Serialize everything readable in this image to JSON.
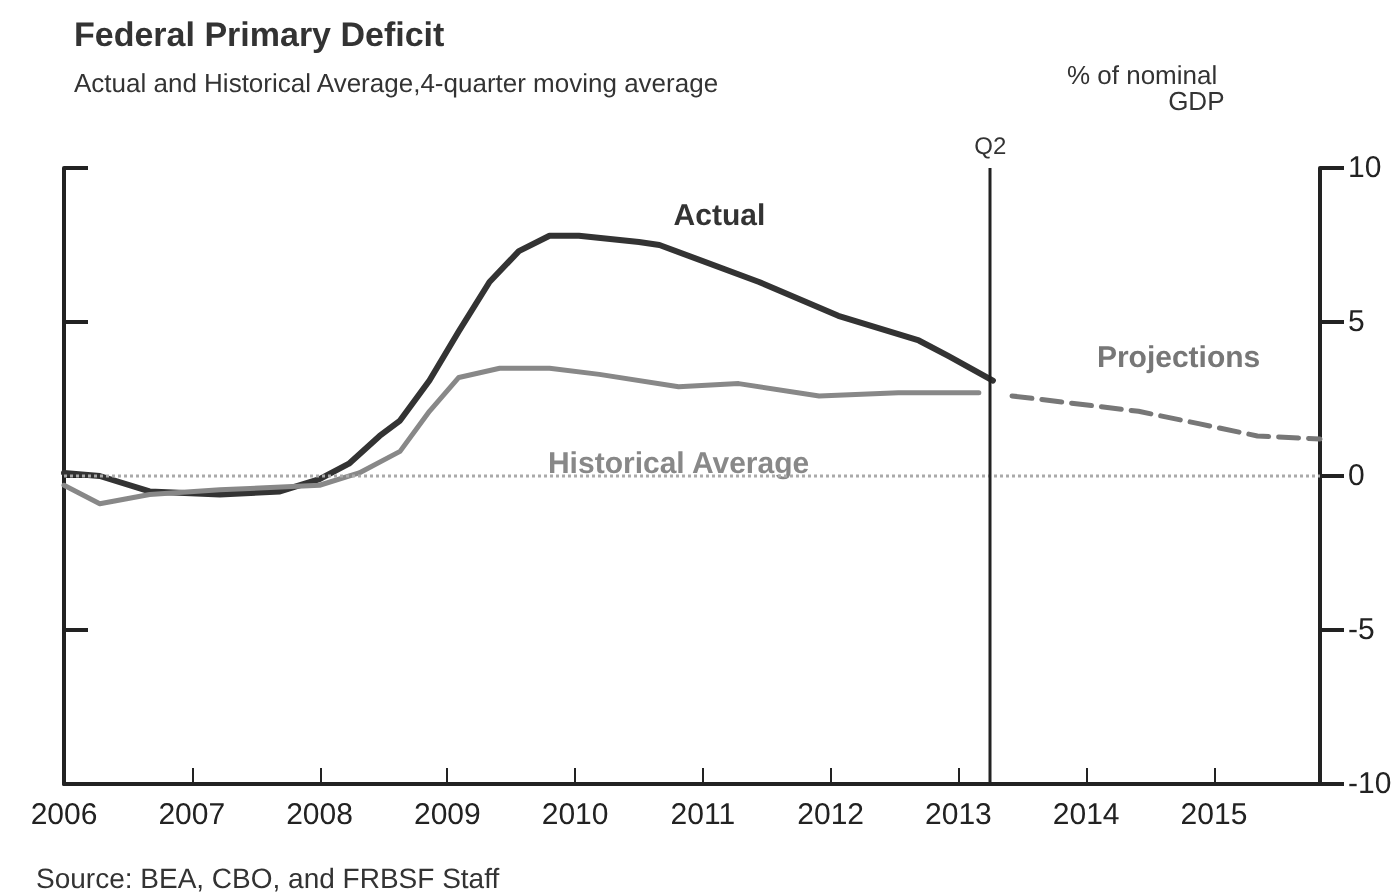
{
  "chart_data": {
    "type": "line",
    "title": "Federal Primary Deficit",
    "subtitle": "Actual and Historical Average,4-quarter moving average",
    "ylabel": "% of nominal GDP",
    "annotations": [
      "Source: BEA, CBO, and FRBSF Staff"
    ],
    "xlim": [
      2006,
      2015.83
    ],
    "xticks": [
      2006,
      2007,
      2008,
      2009,
      2010,
      2011,
      2012,
      2013,
      2014,
      2015
    ],
    "ylim": [
      -10,
      10
    ],
    "yticks": [
      -10,
      -5,
      0,
      5,
      10
    ],
    "grid": false,
    "legend": false,
    "marker": "none",
    "ref_lines": [
      {
        "axis": "y",
        "value": 0,
        "color": "#aaaaaa",
        "line_style": "dotted"
      },
      {
        "axis": "x",
        "value": 2013.25,
        "label": "Q2",
        "color": "#222222",
        "line_style": "solid"
      }
    ],
    "series": [
      {
        "name": "Actual",
        "color": "#333333",
        "line_style": "solid",
        "x": [
          2006,
          2006.28,
          2006.67,
          2007.22,
          2007.69,
          2008,
          2008.23,
          2008.47,
          2008.63,
          2008.86,
          2009.09,
          2009.33,
          2009.56,
          2009.8,
          2010.03,
          2010.5,
          2010.66,
          2011.44,
          2012.06,
          2012.69,
          2012.92,
          2013.27
        ],
        "values": [
          0.1,
          0,
          -0.5,
          -0.6,
          -0.5,
          -0.1,
          0.4,
          1.3,
          1.8,
          3.1,
          4.7,
          6.3,
          7.3,
          7.8,
          7.8,
          7.6,
          7.5,
          6.3,
          5.2,
          4.4,
          3.9,
          3.1
        ]
      },
      {
        "name": "Historical Average",
        "color": "#888888",
        "line_style": "solid",
        "x": [
          2006,
          2006.28,
          2006.67,
          2007.22,
          2008,
          2008.31,
          2008.63,
          2008.86,
          2009.09,
          2009.41,
          2009.8,
          2010.19,
          2010.81,
          2011.28,
          2011.91,
          2012.53,
          2013.16
        ],
        "values": [
          -0.3,
          -0.9,
          -0.6,
          -0.45,
          -0.3,
          0.1,
          0.8,
          2.1,
          3.2,
          3.5,
          3.5,
          3.3,
          2.9,
          3,
          2.6,
          2.7,
          2.7
        ]
      },
      {
        "name": "Projections",
        "color": "#777777",
        "line_style": "dashed",
        "x": [
          2013.42,
          2014.41,
          2014.88,
          2015.34,
          2015.83
        ],
        "values": [
          2.6,
          2.1,
          1.7,
          1.3,
          1.2
        ]
      }
    ]
  }
}
